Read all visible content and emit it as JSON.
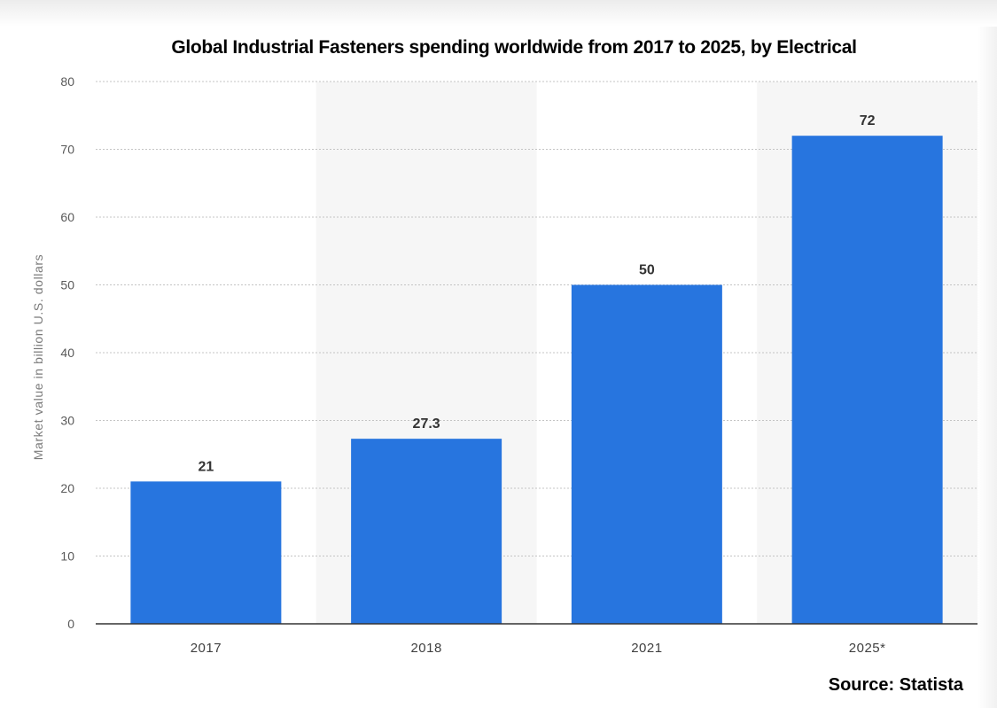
{
  "colors": {
    "bar": "#2775df",
    "grid": "#c4c4c4",
    "band": "#f6f6f6",
    "axis": "#333333"
  },
  "chart_data": {
    "type": "bar",
    "title": "Global Industrial Fasteners spending worldwide from 2017 to 2025, by Electrical",
    "categories": [
      "2017",
      "2018",
      "2021",
      "2025*"
    ],
    "values": [
      21,
      27.3,
      50,
      72
    ],
    "value_labels": [
      "21",
      "27.3",
      "50",
      "72"
    ],
    "xlabel": "",
    "ylabel": "Market value in billion U.S. dollars",
    "ylim": [
      0,
      80
    ],
    "yticks": [
      "0",
      "10",
      "20",
      "30",
      "40",
      "50",
      "60",
      "70",
      "80"
    ],
    "grid": true,
    "source": "Source: Statista"
  }
}
